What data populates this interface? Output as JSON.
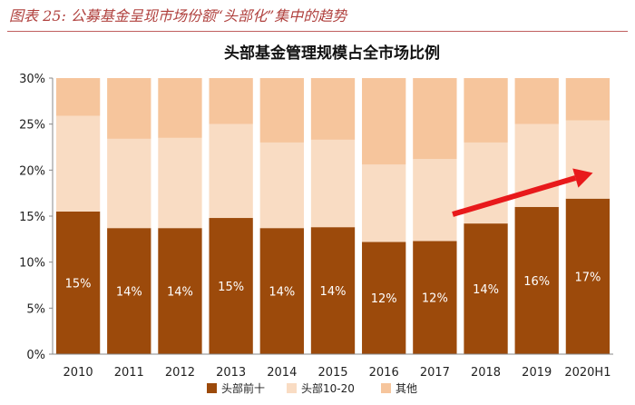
{
  "figure_title": "图表 25: 公募基金呈现市场份额“头部化”集中的趋势",
  "chart_data": {
    "type": "bar",
    "stacked": true,
    "title": "头部基金管理规模占全市场比例",
    "categories": [
      "2010",
      "2011",
      "2012",
      "2013",
      "2014",
      "2015",
      "2016",
      "2017",
      "2018",
      "2019",
      "2020H1"
    ],
    "series": [
      {
        "name": "头部前十",
        "color": "#9c4a0b",
        "values": [
          15.5,
          13.7,
          13.7,
          14.8,
          13.7,
          13.8,
          12.2,
          12.3,
          14.2,
          16.0,
          16.9
        ],
        "labels": [
          "15%",
          "14%",
          "14%",
          "15%",
          "14%",
          "14%",
          "12%",
          "12%",
          "14%",
          "16%",
          "17%"
        ]
      },
      {
        "name": "头部10-20",
        "color": "#f9dcc3",
        "values": [
          10.4,
          9.7,
          9.8,
          10.2,
          9.3,
          9.5,
          8.4,
          8.9,
          8.8,
          9.0,
          8.5
        ]
      },
      {
        "name": "其他",
        "color": "#f6c59c",
        "values": [
          4.1,
          6.6,
          6.5,
          5.0,
          7.0,
          6.7,
          9.4,
          8.8,
          7.0,
          5.0,
          4.6
        ]
      }
    ],
    "ylim": [
      0,
      30
    ],
    "yticks": [
      "0%",
      "5%",
      "10%",
      "15%",
      "20%",
      "25%",
      "30%"
    ],
    "grid": false,
    "legend": "bottom",
    "annotation": {
      "type": "arrow",
      "color": "#e8191b",
      "from_category": "2017",
      "to_category": "2020H1",
      "from_value": 15.2,
      "to_value": 19.7
    }
  }
}
